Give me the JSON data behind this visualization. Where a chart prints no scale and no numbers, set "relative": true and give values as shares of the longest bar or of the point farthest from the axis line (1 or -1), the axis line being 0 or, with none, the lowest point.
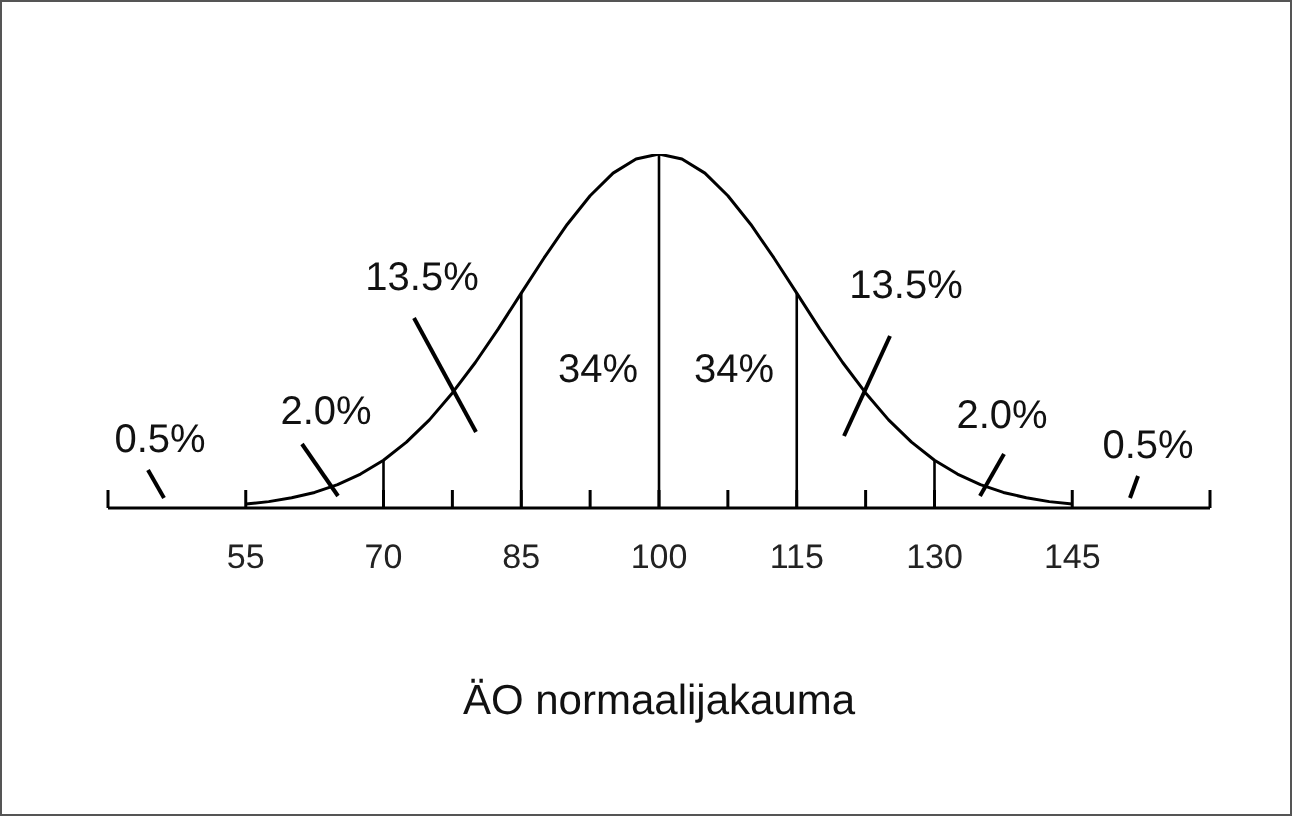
{
  "chart_data": {
    "type": "line",
    "relative": true,
    "xlabel": "ÄO normaalijakauma",
    "x": [
      55,
      57.5,
      60,
      62.5,
      65,
      67.5,
      70,
      72.5,
      75,
      77.5,
      80,
      82.5,
      85,
      87.5,
      90,
      92.5,
      95,
      97.5,
      100,
      102.5,
      105,
      107.5,
      110,
      112.5,
      115,
      117.5,
      120,
      122.5,
      125,
      127.5,
      130,
      132.5,
      135,
      137.5,
      140,
      142.5,
      145
    ],
    "series": [
      {
        "color": "#000000",
        "values": [
          0.011,
          0.018,
          0.029,
          0.044,
          0.066,
          0.096,
          0.135,
          0.186,
          0.249,
          0.325,
          0.411,
          0.506,
          0.607,
          0.707,
          0.801,
          0.882,
          0.946,
          0.986,
          1,
          0.986,
          0.946,
          0.882,
          0.801,
          0.707,
          0.607,
          0.506,
          0.411,
          0.325,
          0.249,
          0.186,
          0.135,
          0.096,
          0.066,
          0.044,
          0.029,
          0.018,
          0.011
        ]
      }
    ],
    "xlim": [
      40,
      160
    ],
    "xticks": [
      {
        "value": 40,
        "label": null
      },
      55,
      70,
      {
        "value": 77.5,
        "label": null
      },
      85,
      {
        "value": 92.5,
        "label": null
      },
      100,
      {
        "value": 107.5,
        "label": null
      },
      115,
      {
        "value": 122.5,
        "label": null
      },
      130,
      145,
      {
        "value": 160,
        "label": null
      }
    ],
    "ref_lines": [
      {
        "axis": "x",
        "value": 70,
        "label": null,
        "color": "#000000",
        "line_style": "solid"
      },
      {
        "axis": "x",
        "value": 85,
        "label": null,
        "color": "#000000",
        "line_style": "solid"
      },
      {
        "axis": "x",
        "value": 100,
        "label": null,
        "color": "#000000",
        "line_style": "solid"
      },
      {
        "axis": "x",
        "value": 115,
        "label": null,
        "color": "#000000",
        "line_style": "solid"
      },
      {
        "axis": "x",
        "value": 130,
        "label": null,
        "color": "#000000",
        "line_style": "solid"
      }
    ],
    "annotations": [
      "0.5%",
      "2.0%",
      "13.5%",
      "34%",
      "34%",
      "13.5%",
      "2.0%",
      "0.5%"
    ],
    "grid": false,
    "marker": "none",
    "line_style": "solid"
  }
}
